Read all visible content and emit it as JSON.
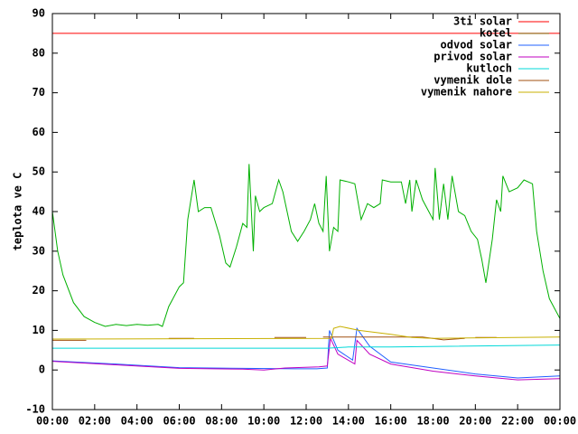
{
  "chart_data": {
    "type": "line",
    "ylabel": "teplota ve C",
    "xlim": [
      0,
      24
    ],
    "xticks": [
      {
        "value": 0,
        "label": "00:00"
      },
      {
        "value": 2,
        "label": "02:00"
      },
      {
        "value": 4,
        "label": "04:00"
      },
      {
        "value": 6,
        "label": "06:00"
      },
      {
        "value": 8,
        "label": "08:00"
      },
      {
        "value": 10,
        "label": "10:00"
      },
      {
        "value": 12,
        "label": "12:00"
      },
      {
        "value": 14,
        "label": "14:00"
      },
      {
        "value": 16,
        "label": "16:00"
      },
      {
        "value": 18,
        "label": "18:00"
      },
      {
        "value": 20,
        "label": "20:00"
      },
      {
        "value": 22,
        "label": "22:00"
      },
      {
        "value": 24,
        "label": "00:00"
      }
    ],
    "ylim": [
      -10,
      90
    ],
    "yticks": [
      -10,
      0,
      10,
      20,
      30,
      40,
      50,
      60,
      70,
      80,
      90
    ],
    "legend": "top-right",
    "series": [
      {
        "name": "3ti solar",
        "color": "#ff0000",
        "x": [
          0,
          24
        ],
        "values": [
          85,
          85
        ]
      },
      {
        "name": "kotel",
        "color": "#806000",
        "x": [],
        "values": []
      },
      {
        "name": "odvod solar",
        "color": "#2060ff",
        "x": [
          0,
          3,
          6,
          9,
          11.5,
          12.5,
          13,
          13.1,
          13.5,
          14.2,
          14.4,
          15,
          16,
          18,
          20,
          22,
          24
        ],
        "values": [
          2.3,
          1.5,
          0.6,
          0.4,
          0.3,
          0.3,
          0.5,
          10,
          5,
          2.5,
          10.5,
          6,
          2,
          0.5,
          -1,
          -2,
          -1.5
        ]
      },
      {
        "name": "privod solar",
        "color": "#c000c0",
        "x": [
          0,
          3,
          6,
          9,
          10,
          11,
          12.6,
          13,
          13.15,
          13.5,
          14.3,
          14.4,
          15,
          16,
          18,
          20,
          22,
          24
        ],
        "values": [
          2.2,
          1.3,
          0.4,
          0.2,
          0,
          0.5,
          0.8,
          1,
          8,
          4,
          1.5,
          7.5,
          4,
          1.5,
          -0.3,
          -1.5,
          -2.5,
          -2.2
        ]
      },
      {
        "name": "kutloch",
        "color": "#00d8d8",
        "x": [
          0,
          13,
          14,
          16,
          24
        ],
        "values": [
          5.5,
          5.5,
          5.8,
          5.8,
          6.3
        ]
      },
      {
        "name": "vymenik dole",
        "color": "#a05010",
        "x": [
          0,
          1.6,
          1.7,
          5.5,
          6.7,
          6.8,
          10.5,
          12,
          12.1,
          12.8,
          17.5,
          18.5,
          19.5,
          19.6,
          20,
          21
        ],
        "values": [
          7.5,
          7.5,
          null,
          8,
          8,
          null,
          8.2,
          8.2,
          null,
          8.3,
          8.3,
          7.6,
          8,
          null,
          8.2,
          8.2
        ]
      },
      {
        "name": "vymenik nahore",
        "color": "#c8b000",
        "x": [
          0,
          13.2,
          13.3,
          13.6,
          14.5,
          16,
          17,
          18,
          24
        ],
        "values": [
          7.8,
          8,
          10.5,
          11,
          10,
          9,
          8.2,
          8,
          8.3
        ]
      },
      {
        "color": "#00b000",
        "x": [
          0,
          0.25,
          0.5,
          1,
          1.5,
          2,
          2.5,
          3,
          3.5,
          4,
          4.5,
          5,
          5.2,
          5.5,
          6,
          6.2,
          6.4,
          6.7,
          6.9,
          7.2,
          7.5,
          7.9,
          8.2,
          8.4,
          8.7,
          9,
          9.2,
          9.3,
          9.5,
          9.6,
          9.8,
          10,
          10.4,
          10.7,
          10.9,
          11.1,
          11.3,
          11.6,
          11.9,
          12.2,
          12.4,
          12.6,
          12.8,
          12.95,
          13.1,
          13.3,
          13.5,
          13.6,
          14,
          14.3,
          14.6,
          14.9,
          15.2,
          15.5,
          15.6,
          16,
          16.5,
          16.7,
          16.9,
          17,
          17.2,
          17.5,
          17.8,
          18,
          18.1,
          18.3,
          18.5,
          18.7,
          18.9,
          19.2,
          19.5,
          19.8,
          20.1,
          20.3,
          20.5,
          20.8,
          21,
          21.2,
          21.3,
          21.6,
          22,
          22.3,
          22.7,
          22.9,
          23.2,
          23.5,
          24
        ],
        "values": [
          40,
          30,
          24,
          17,
          13.5,
          12,
          11,
          11.5,
          11.2,
          11.5,
          11.3,
          11.5,
          11,
          16,
          21,
          22,
          38,
          48,
          40,
          41,
          41,
          34,
          27,
          26,
          31,
          37,
          36,
          52,
          30,
          44,
          40,
          41,
          42,
          48,
          45,
          40,
          35,
          32.5,
          35,
          38,
          42,
          37,
          35,
          49,
          30,
          36,
          35,
          48,
          47.5,
          47,
          38,
          42,
          41,
          42,
          48,
          47.5,
          47.5,
          42,
          48,
          40,
          48,
          43,
          40,
          38,
          51,
          38,
          47,
          38,
          49,
          40,
          39,
          35,
          33,
          28,
          22,
          33,
          43,
          40,
          49,
          45,
          46,
          48,
          47,
          35,
          25,
          18,
          13
        ]
      }
    ]
  }
}
